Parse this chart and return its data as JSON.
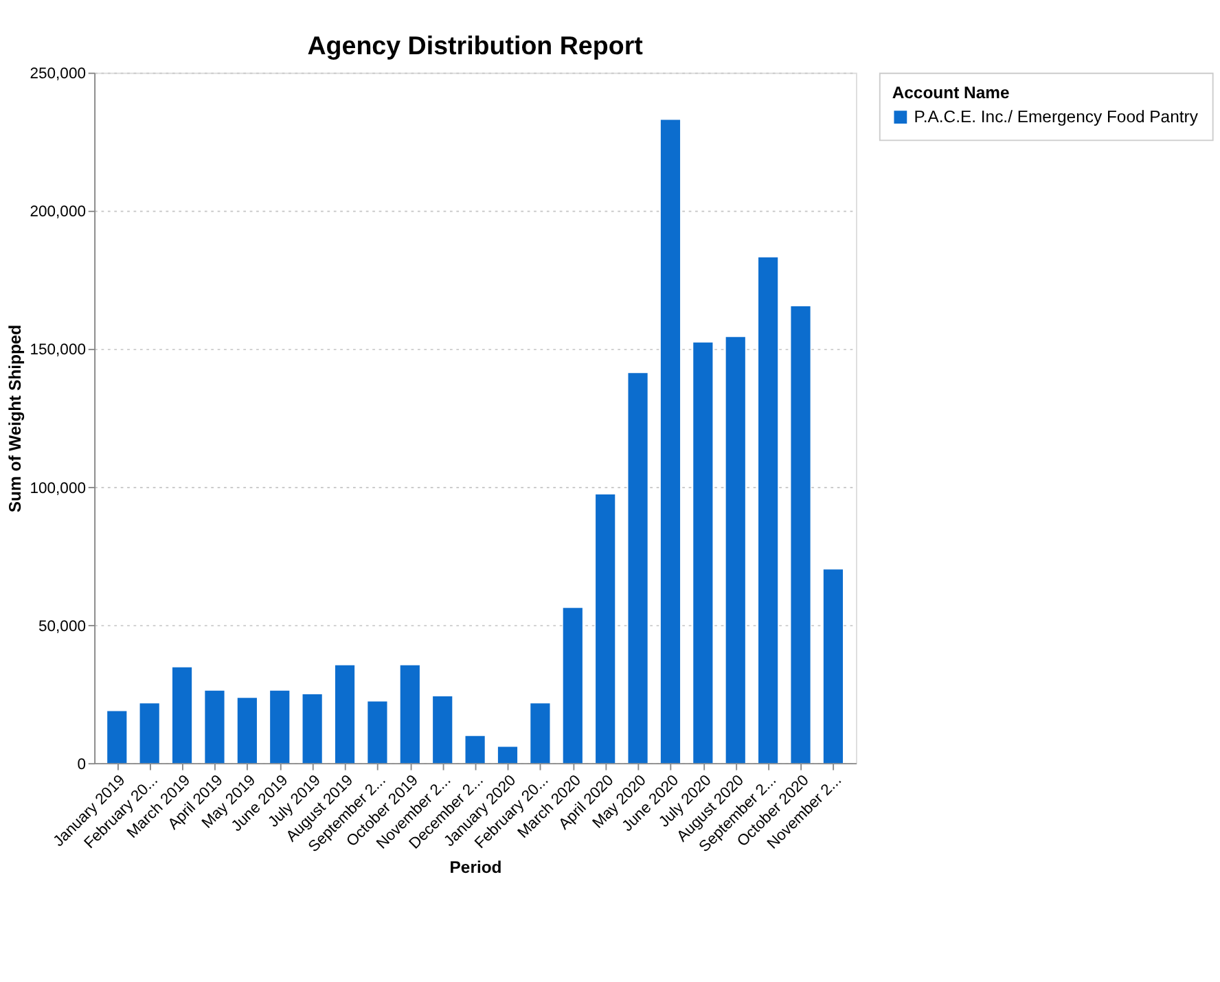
{
  "chart_data": {
    "type": "bar",
    "title": "Agency Distribution Report",
    "xlabel": "Period",
    "ylabel": "Sum of Weight Shipped",
    "legend_title": "Account Name",
    "categories": [
      "January 2019",
      "February 20...",
      "March 2019",
      "April 2019",
      "May 2019",
      "June 2019",
      "July 2019",
      "August 2019",
      "September 2...",
      "October 2019",
      "November 2...",
      "December 2...",
      "January 2020",
      "February 20...",
      "March 2020",
      "April 2020",
      "May 2020",
      "June 2020",
      "July 2020",
      "August 2020",
      "September 2...",
      "October 2020",
      "November 2..."
    ],
    "series": [
      {
        "name": "P.A.C.E. Inc./ Emergency Food Pantry",
        "color": "#0c6dce",
        "values": [
          18800,
          21600,
          34700,
          26200,
          23600,
          26200,
          24900,
          35400,
          22300,
          35400,
          24200,
          9800,
          5900,
          21600,
          56200,
          97300,
          141200,
          232900,
          152300,
          154300,
          183100,
          165400,
          70100
        ]
      }
    ],
    "ylim": [
      0,
      250000
    ],
    "yticks": [
      {
        "value": 0,
        "label": "0"
      },
      {
        "value": 50000,
        "label": "50,000"
      },
      {
        "value": 100000,
        "label": "100,000"
      },
      {
        "value": 150000,
        "label": "150,000"
      },
      {
        "value": 200000,
        "label": "200,000"
      },
      {
        "value": 250000,
        "label": "250,000"
      }
    ],
    "grid": "y",
    "legend": "top right"
  }
}
